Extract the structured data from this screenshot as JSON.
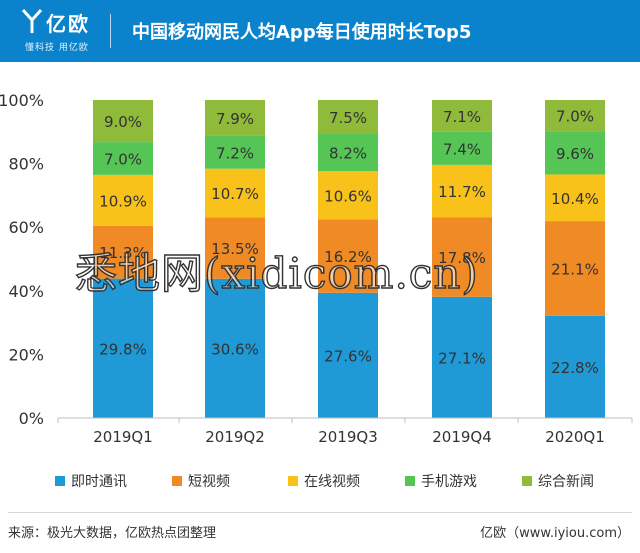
{
  "header": {
    "logo_text": "亿欧",
    "logo_slogan": "懂科技 用亿欧",
    "title": "中国移动网民人均App每日使用时长Top5"
  },
  "chart_data": {
    "type": "bar",
    "stacked": true,
    "percent": true,
    "categories": [
      "2019Q1",
      "2019Q2",
      "2019Q3",
      "2019Q4",
      "2020Q1"
    ],
    "y_ticks": [
      "0%",
      "20%",
      "40%",
      "60%",
      "80%",
      "100%"
    ],
    "ylim": [
      0,
      100
    ],
    "grid": false,
    "legend_position": "bottom",
    "series": [
      {
        "name": "即时通讯",
        "color": "#1f9ad6",
        "values": [
          29.8,
          30.6,
          27.6,
          27.1,
          22.8
        ],
        "labels": [
          "29.8%",
          "30.6%",
          "27.6%",
          "27.1%",
          "22.8%"
        ]
      },
      {
        "name": "短视频",
        "color": "#f08a24",
        "values": [
          11.3,
          13.5,
          16.2,
          17.8,
          21.1
        ],
        "labels": [
          "11.3%",
          "13.5%",
          "16.2%",
          "17.8%",
          "21.1%"
        ]
      },
      {
        "name": "在线视频",
        "color": "#f9c21a",
        "values": [
          10.9,
          10.7,
          10.6,
          11.7,
          10.4
        ],
        "labels": [
          "10.9%",
          "10.7%",
          "10.6%",
          "11.7%",
          "10.4%"
        ]
      },
      {
        "name": "手机游戏",
        "color": "#55c655",
        "values": [
          7.0,
          7.2,
          8.2,
          7.4,
          9.6
        ],
        "labels": [
          "7.0%",
          "7.2%",
          "8.2%",
          "7.4%",
          "9.6%"
        ]
      },
      {
        "name": "综合新闻",
        "color": "#8fba3a",
        "values": [
          9.0,
          7.9,
          7.5,
          7.1,
          7.0
        ],
        "labels": [
          "9.0%",
          "7.9%",
          "7.5%",
          "7.1%",
          "7.0%"
        ]
      }
    ]
  },
  "watermark": "悉地网(xidicom.cn)",
  "footer": {
    "source": "来源：极光大数据，亿欧热点团整理",
    "credit": "亿欧（www.iyiou.com）"
  }
}
